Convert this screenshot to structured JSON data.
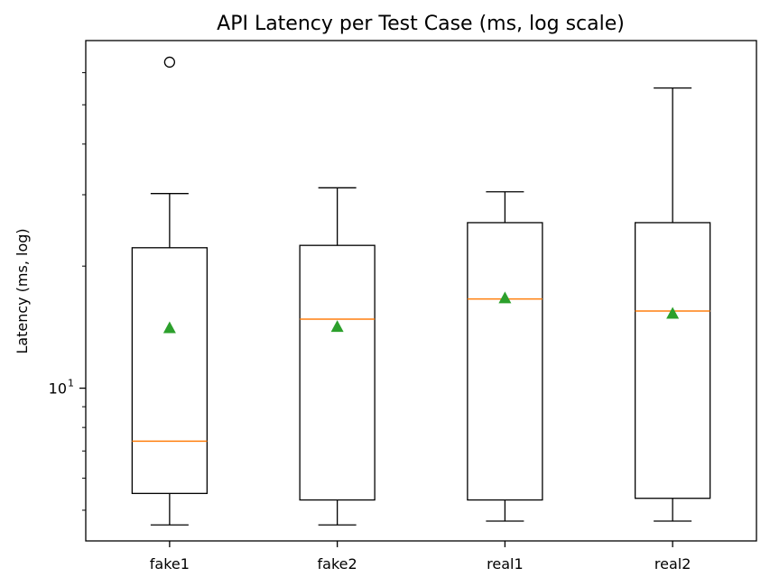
{
  "chart_data": {
    "type": "box",
    "title": "API Latency per Test Case (ms, log scale)",
    "xlabel": "",
    "ylabel": "Latency (ms, log)",
    "yscale": "log",
    "ylim": [
      4.2,
      72
    ],
    "yticks_major": [
      {
        "value": 10,
        "base": "10",
        "exp": "1"
      }
    ],
    "yticks_minor": [
      5,
      6,
      7,
      8,
      9,
      20,
      30,
      40,
      50,
      60
    ],
    "grid": false,
    "colors": {
      "box": "#000000",
      "median": "#ff7f0e",
      "mean": "#2ca02c",
      "outlier": "#000000"
    },
    "categories": [
      "fake1",
      "fake2",
      "real1",
      "real2"
    ],
    "boxes": [
      {
        "name": "fake1",
        "whisker_low": 4.6,
        "q1": 5.5,
        "median": 7.4,
        "q3": 22.2,
        "whisker_high": 30.2,
        "mean": 14.1,
        "outliers": [
          63.7
        ]
      },
      {
        "name": "fake2",
        "whisker_low": 4.6,
        "q1": 5.3,
        "median": 14.8,
        "q3": 22.5,
        "whisker_high": 31.2,
        "mean": 14.2,
        "outliers": []
      },
      {
        "name": "real1",
        "whisker_low": 4.7,
        "q1": 5.3,
        "median": 16.6,
        "q3": 25.6,
        "whisker_high": 30.5,
        "mean": 16.7,
        "outliers": []
      },
      {
        "name": "real2",
        "whisker_low": 4.7,
        "q1": 5.35,
        "median": 15.5,
        "q3": 25.6,
        "whisker_high": 55.0,
        "mean": 15.3,
        "outliers": []
      }
    ]
  }
}
